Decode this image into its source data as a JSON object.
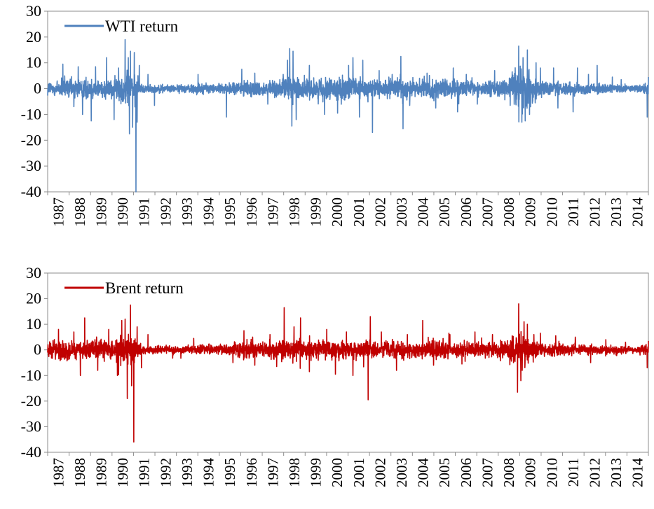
{
  "chart_data": [
    {
      "type": "line",
      "title": "",
      "xlabel": "",
      "ylabel": "",
      "ylim": [
        -40,
        30
      ],
      "yticks": [
        30,
        20,
        10,
        0,
        -10,
        -20,
        -30,
        -40
      ],
      "x_tick_labels": [
        "1987",
        "1988",
        "1989",
        "1990",
        "1991",
        "1992",
        "1993",
        "1994",
        "1995",
        "1996",
        "1997",
        "1998",
        "1999",
        "2000",
        "2001",
        "2002",
        "2003",
        "2004",
        "2005",
        "2006",
        "2007",
        "2008",
        "2009",
        "2010",
        "2011",
        "2012",
        "2013",
        "2014"
      ],
      "x_range": [
        1987.0,
        2014.55
      ],
      "grid": false,
      "legend": {
        "placement": "top-left",
        "entries": [
          "WTI return"
        ]
      },
      "series": [
        {
          "name": "WTI return",
          "color": "#4f81bd",
          "amplitude_profile": [
            [
              1987.0,
              3.5
            ],
            [
              1988.0,
              4.5
            ],
            [
              1989.0,
              4.5
            ],
            [
              1990.0,
              4.0
            ],
            [
              1990.5,
              7.5
            ],
            [
              1991.0,
              6.0
            ],
            [
              1991.3,
              2.0
            ],
            [
              1992.0,
              1.6
            ],
            [
              1993.0,
              1.6
            ],
            [
              1994.0,
              2.5
            ],
            [
              1995.0,
              1.8
            ],
            [
              1996.0,
              3.5
            ],
            [
              1997.0,
              3.0
            ],
            [
              1997.8,
              4.0
            ],
            [
              1998.0,
              6.0
            ],
            [
              1998.5,
              5.0
            ],
            [
              1999.0,
              4.5
            ],
            [
              2000.0,
              4.5
            ],
            [
              2001.0,
              5.0
            ],
            [
              2002.0,
              4.0
            ],
            [
              2003.0,
              4.5
            ],
            [
              2004.0,
              4.0
            ],
            [
              2005.0,
              4.0
            ],
            [
              2006.0,
              3.5
            ],
            [
              2007.0,
              3.0
            ],
            [
              2008.0,
              4.0
            ],
            [
              2008.6,
              10.0
            ],
            [
              2009.0,
              8.0
            ],
            [
              2009.5,
              4.0
            ],
            [
              2010.0,
              2.6
            ],
            [
              2011.0,
              3.0
            ],
            [
              2012.0,
              2.3
            ],
            [
              2013.0,
              1.8
            ],
            [
              2014.0,
              1.6
            ],
            [
              2014.55,
              2.5
            ]
          ],
          "spikes": [
            [
              1987.7,
              9.5
            ],
            [
              1988.2,
              -7.0
            ],
            [
              1988.4,
              8.5
            ],
            [
              1988.6,
              -10.0
            ],
            [
              1989.0,
              -12.5
            ],
            [
              1989.2,
              8.5
            ],
            [
              1989.7,
              12.0
            ],
            [
              1990.05,
              -12.0
            ],
            [
              1990.25,
              8.0
            ],
            [
              1990.55,
              19.0
            ],
            [
              1990.7,
              12.0
            ],
            [
              1990.75,
              -17.5
            ],
            [
              1990.8,
              14.5
            ],
            [
              1990.9,
              -15.0
            ],
            [
              1990.97,
              14.0
            ],
            [
              1991.05,
              -40.0
            ],
            [
              1991.1,
              -13.0
            ],
            [
              1991.2,
              9.0
            ],
            [
              1991.6,
              5.5
            ],
            [
              1991.9,
              -6.5
            ],
            [
              1993.9,
              5.5
            ],
            [
              1995.2,
              -11.0
            ],
            [
              1995.9,
              7.5
            ],
            [
              1996.5,
              6.0
            ],
            [
              1997.1,
              -6.0
            ],
            [
              1997.8,
              5.5
            ],
            [
              1998.0,
              11.0
            ],
            [
              1998.1,
              15.5
            ],
            [
              1998.2,
              -14.5
            ],
            [
              1998.25,
              14.5
            ],
            [
              1998.4,
              -12.0
            ],
            [
              1999.0,
              9.0
            ],
            [
              1999.7,
              -10.0
            ],
            [
              2000.3,
              -9.5
            ],
            [
              2000.8,
              9.0
            ],
            [
              2001.0,
              12.0
            ],
            [
              2001.3,
              -11.0
            ],
            [
              2001.45,
              11.0
            ],
            [
              2001.9,
              -17.0
            ],
            [
              2002.2,
              7.0
            ],
            [
              2002.8,
              5.5
            ],
            [
              2003.2,
              12.5
            ],
            [
              2003.3,
              -15.5
            ],
            [
              2003.6,
              -6.5
            ],
            [
              2004.4,
              6.0
            ],
            [
              2004.8,
              -7.5
            ],
            [
              2005.6,
              8.0
            ],
            [
              2005.8,
              -9.0
            ],
            [
              2006.2,
              5.5
            ],
            [
              2006.7,
              -6.0
            ],
            [
              2007.5,
              7.0
            ],
            [
              2008.3,
              6.5
            ],
            [
              2008.6,
              16.5
            ],
            [
              2008.75,
              -13.0
            ],
            [
              2008.8,
              12.0
            ],
            [
              2008.9,
              -12.5
            ],
            [
              2009.0,
              15.0
            ],
            [
              2009.1,
              -10.0
            ],
            [
              2009.4,
              10.0
            ],
            [
              2009.6,
              8.0
            ],
            [
              2010.2,
              8.0
            ],
            [
              2010.4,
              -7.5
            ],
            [
              2011.1,
              -9.0
            ],
            [
              2011.3,
              8.0
            ],
            [
              2011.8,
              5.5
            ],
            [
              2012.2,
              9.0
            ],
            [
              2012.9,
              4.5
            ],
            [
              2013.3,
              3.5
            ],
            [
              2014.5,
              -11.0
            ],
            [
              2014.55,
              4.5
            ]
          ]
        }
      ]
    },
    {
      "type": "line",
      "title": "",
      "xlabel": "",
      "ylabel": "",
      "ylim": [
        -40,
        30
      ],
      "yticks": [
        30,
        20,
        10,
        0,
        -10,
        -20,
        -30,
        -40
      ],
      "x_tick_labels": [
        "1987",
        "1988",
        "1989",
        "1990",
        "1991",
        "1992",
        "1993",
        "1994",
        "1995",
        "1996",
        "1997",
        "1998",
        "1999",
        "2000",
        "2001",
        "2002",
        "2003",
        "2004",
        "2005",
        "2006",
        "2007",
        "2008",
        "2009",
        "2010",
        "2011",
        "2012",
        "2013",
        "2014"
      ],
      "x_range": [
        1987.0,
        2014.55
      ],
      "grid": false,
      "legend": {
        "placement": "top-left",
        "entries": [
          "Brent return"
        ]
      },
      "series": [
        {
          "name": "Brent return",
          "color": "#c00000",
          "amplitude_profile": [
            [
              1987.0,
              3.5
            ],
            [
              1988.0,
              4.0
            ],
            [
              1989.0,
              4.0
            ],
            [
              1990.0,
              4.0
            ],
            [
              1990.5,
              7.0
            ],
            [
              1991.0,
              6.0
            ],
            [
              1991.3,
              2.0
            ],
            [
              1992.0,
              1.6
            ],
            [
              1993.0,
              1.8
            ],
            [
              1994.0,
              2.2
            ],
            [
              1995.0,
              2.0
            ],
            [
              1996.0,
              4.0
            ],
            [
              1997.0,
              3.5
            ],
            [
              1998.0,
              5.0
            ],
            [
              1999.0,
              4.5
            ],
            [
              2000.0,
              4.5
            ],
            [
              2001.0,
              4.5
            ],
            [
              2002.0,
              3.5
            ],
            [
              2003.0,
              4.0
            ],
            [
              2004.0,
              3.5
            ],
            [
              2005.0,
              4.0
            ],
            [
              2006.0,
              3.5
            ],
            [
              2007.0,
              3.0
            ],
            [
              2008.0,
              4.5
            ],
            [
              2008.6,
              9.0
            ],
            [
              2009.0,
              7.0
            ],
            [
              2009.5,
              3.5
            ],
            [
              2010.0,
              2.5
            ],
            [
              2011.0,
              2.5
            ],
            [
              2012.0,
              2.0
            ],
            [
              2013.0,
              1.8
            ],
            [
              2014.0,
              1.5
            ],
            [
              2014.55,
              2.5
            ]
          ],
          "spikes": [
            [
              1987.5,
              8.0
            ],
            [
              1988.2,
              7.0
            ],
            [
              1988.5,
              -10.0
            ],
            [
              1988.7,
              12.5
            ],
            [
              1989.3,
              -8.0
            ],
            [
              1989.8,
              8.0
            ],
            [
              1990.2,
              -10.0
            ],
            [
              1990.4,
              11.5
            ],
            [
              1990.55,
              12.0
            ],
            [
              1990.65,
              -19.0
            ],
            [
              1990.8,
              17.5
            ],
            [
              1990.85,
              -14.0
            ],
            [
              1990.95,
              -36.0
            ],
            [
              1991.1,
              9.0
            ],
            [
              1991.3,
              -7.0
            ],
            [
              1991.6,
              6.0
            ],
            [
              1993.7,
              4.5
            ],
            [
              1995.5,
              -5.0
            ],
            [
              1996.0,
              7.5
            ],
            [
              1996.5,
              -6.0
            ],
            [
              1997.2,
              6.0
            ],
            [
              1997.5,
              -6.5
            ],
            [
              1997.85,
              16.5
            ],
            [
              1998.3,
              9.0
            ],
            [
              1998.6,
              12.5
            ],
            [
              1999.0,
              -8.5
            ],
            [
              1999.8,
              8.0
            ],
            [
              2000.2,
              -9.5
            ],
            [
              2000.7,
              7.0
            ],
            [
              2001.0,
              -10.0
            ],
            [
              2001.7,
              -19.5
            ],
            [
              2001.8,
              13.0
            ],
            [
              2002.3,
              7.0
            ],
            [
              2003.0,
              -8.0
            ],
            [
              2003.5,
              6.0
            ],
            [
              2004.2,
              11.5
            ],
            [
              2004.7,
              -6.0
            ],
            [
              2005.4,
              6.5
            ],
            [
              2006.0,
              -5.5
            ],
            [
              2006.6,
              7.0
            ],
            [
              2007.4,
              6.0
            ],
            [
              2008.3,
              5.5
            ],
            [
              2008.55,
              -16.5
            ],
            [
              2008.6,
              18.0
            ],
            [
              2008.7,
              -12.0
            ],
            [
              2008.85,
              11.0
            ],
            [
              2009.0,
              10.0
            ],
            [
              2009.3,
              6.0
            ],
            [
              2009.6,
              6.5
            ],
            [
              2010.3,
              5.5
            ],
            [
              2011.2,
              5.0
            ],
            [
              2011.9,
              -5.0
            ],
            [
              2012.6,
              4.0
            ],
            [
              2013.5,
              3.0
            ],
            [
              2014.5,
              -7.0
            ],
            [
              2014.55,
              3.5
            ]
          ]
        }
      ]
    }
  ]
}
